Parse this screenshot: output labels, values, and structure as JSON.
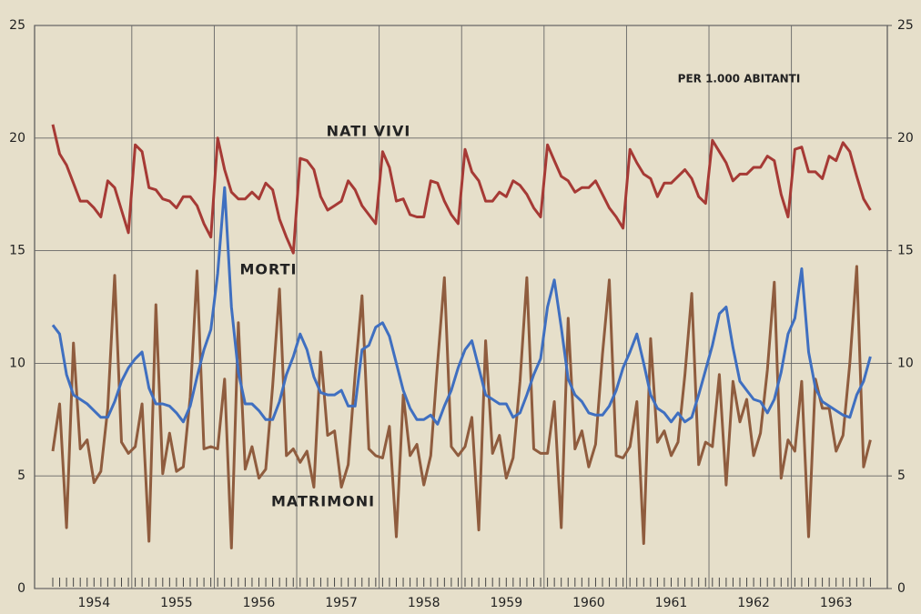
{
  "chart_data": {
    "type": "line",
    "annotations": [
      "NATI VIVI",
      "MORTI",
      "MATRIMONI",
      "PER 1.000 ABITANTI"
    ],
    "categories": [
      null,
      null,
      null,
      null,
      null,
      null,
      "1954",
      null,
      null,
      null,
      null,
      null,
      null,
      null,
      null,
      null,
      null,
      null,
      "1955",
      null,
      null,
      null,
      null,
      null,
      null,
      null,
      null,
      null,
      null,
      null,
      "1956",
      null,
      null,
      null,
      null,
      null,
      null,
      null,
      null,
      null,
      null,
      null,
      "1957",
      null,
      null,
      null,
      null,
      null,
      null,
      null,
      null,
      null,
      null,
      null,
      "1958",
      null,
      null,
      null,
      null,
      null,
      null,
      null,
      null,
      null,
      null,
      null,
      "1959",
      null,
      null,
      null,
      null,
      null,
      null,
      null,
      null,
      null,
      null,
      null,
      "1960",
      null,
      null,
      null,
      null,
      null,
      null,
      null,
      null,
      null,
      null,
      null,
      "1961",
      null,
      null,
      null,
      null,
      null,
      null,
      null,
      null,
      null,
      null,
      null,
      "1962",
      null,
      null,
      null,
      null,
      null,
      null,
      null,
      null,
      null,
      null,
      null,
      "1963",
      null,
      null,
      null,
      null,
      null
    ],
    "series": [
      {
        "name": "NATI VIVI",
        "color": "#a63a35",
        "values": [
          20.6,
          19.3,
          18.8,
          18.0,
          17.2,
          17.2,
          16.9,
          16.5,
          18.1,
          17.8,
          16.8,
          15.8,
          19.7,
          19.4,
          17.8,
          17.7,
          17.3,
          17.2,
          16.9,
          17.4,
          17.4,
          17.0,
          16.2,
          15.6,
          20.0,
          18.6,
          17.6,
          17.3,
          17.3,
          17.6,
          17.3,
          18.0,
          17.7,
          16.4,
          15.6,
          14.9,
          19.1,
          19.0,
          18.6,
          17.4,
          16.8,
          17.0,
          17.2,
          18.1,
          17.7,
          17.0,
          16.6,
          16.2,
          19.4,
          18.7,
          17.2,
          17.3,
          16.6,
          16.5,
          16.5,
          18.1,
          18.0,
          17.2,
          16.6,
          16.2,
          19.5,
          18.5,
          18.1,
          17.2,
          17.2,
          17.6,
          17.4,
          18.1,
          17.9,
          17.5,
          16.9,
          16.5,
          19.7,
          19.0,
          18.3,
          18.1,
          17.6,
          17.8,
          17.8,
          18.1,
          17.5,
          16.9,
          16.5,
          16.0,
          19.5,
          18.9,
          18.4,
          18.2,
          17.4,
          18.0,
          18.0,
          18.3,
          18.6,
          18.2,
          17.4,
          17.1,
          19.9,
          19.4,
          18.9,
          18.1,
          18.4,
          18.4,
          18.7,
          18.7,
          19.2,
          19.0,
          17.5,
          16.5,
          19.5,
          19.6,
          18.5,
          18.5,
          18.2,
          19.2,
          19.0,
          19.8,
          19.4,
          18.3,
          17.3,
          16.8
        ]
      },
      {
        "name": "MORTI",
        "color": "#3f6fc0",
        "values": [
          11.7,
          11.3,
          9.5,
          8.6,
          8.4,
          8.2,
          7.9,
          7.6,
          7.6,
          8.3,
          9.2,
          9.8,
          10.2,
          10.5,
          8.9,
          8.2,
          8.2,
          8.1,
          7.8,
          7.4,
          8.1,
          9.4,
          10.6,
          11.5,
          14.0,
          17.8,
          12.5,
          9.6,
          8.2,
          8.2,
          7.9,
          7.5,
          7.5,
          8.3,
          9.5,
          10.3,
          11.3,
          10.6,
          9.4,
          8.7,
          8.6,
          8.6,
          8.8,
          8.1,
          8.1,
          10.6,
          10.8,
          11.6,
          11.8,
          11.2,
          10.0,
          8.8,
          8.0,
          7.5,
          7.5,
          7.7,
          7.3,
          8.1,
          8.8,
          9.8,
          10.6,
          11.0,
          9.8,
          8.6,
          8.4,
          8.2,
          8.2,
          7.6,
          7.8,
          8.6,
          9.5,
          10.2,
          12.5,
          13.7,
          11.6,
          9.3,
          8.6,
          8.3,
          7.8,
          7.7,
          7.7,
          8.1,
          8.8,
          9.8,
          10.5,
          11.3,
          10.0,
          8.6,
          8.0,
          7.8,
          7.4,
          7.8,
          7.4,
          7.6,
          8.6,
          9.7,
          10.8,
          12.2,
          12.5,
          10.7,
          9.2,
          8.8,
          8.4,
          8.3,
          7.8,
          8.4,
          9.6,
          11.3,
          12.0,
          14.2,
          10.5,
          8.9,
          8.3,
          8.1,
          7.9,
          7.7,
          7.6,
          8.6,
          9.2,
          10.3
        ]
      },
      {
        "name": "MATRIMONI",
        "color": "#8f5c3e",
        "values": [
          6.1,
          8.2,
          2.7,
          10.9,
          6.2,
          6.6,
          4.7,
          5.2,
          8.0,
          13.9,
          6.5,
          6.0,
          6.3,
          8.2,
          2.1,
          12.6,
          5.1,
          6.9,
          5.2,
          5.4,
          8.5,
          14.1,
          6.2,
          6.3,
          6.2,
          9.3,
          1.8,
          11.8,
          5.3,
          6.3,
          4.9,
          5.3,
          9.0,
          13.3,
          5.9,
          6.2,
          5.6,
          6.1,
          4.5,
          10.5,
          6.8,
          7.0,
          4.5,
          5.5,
          9.5,
          13.0,
          6.2,
          5.9,
          5.8,
          7.2,
          2.3,
          8.6,
          5.9,
          6.4,
          4.6,
          5.9,
          10.0,
          13.8,
          6.3,
          5.9,
          6.3,
          7.6,
          2.6,
          11.0,
          6.0,
          6.8,
          4.9,
          5.8,
          9.2,
          13.8,
          6.2,
          6.0,
          6.0,
          8.3,
          2.7,
          12.0,
          6.2,
          7.0,
          5.4,
          6.4,
          10.4,
          13.7,
          5.9,
          5.8,
          6.3,
          8.3,
          2.0,
          11.1,
          6.5,
          7.0,
          5.9,
          6.5,
          9.5,
          13.1,
          5.5,
          6.5,
          6.3,
          9.5,
          4.6,
          9.2,
          7.4,
          8.4,
          5.9,
          6.9,
          9.7,
          13.6,
          4.9,
          6.6,
          6.1,
          9.2,
          2.3,
          9.3,
          8.0,
          8.0,
          6.1,
          6.8,
          10.0,
          14.3,
          5.4,
          6.6
        ]
      }
    ],
    "ylim": [
      0,
      25
    ],
    "yticks": [
      0,
      5,
      10,
      15,
      20,
      25
    ],
    "y2lim": [
      0,
      25
    ],
    "y2ticks": [
      0,
      5,
      10,
      15,
      20,
      25
    ],
    "grid": true
  }
}
